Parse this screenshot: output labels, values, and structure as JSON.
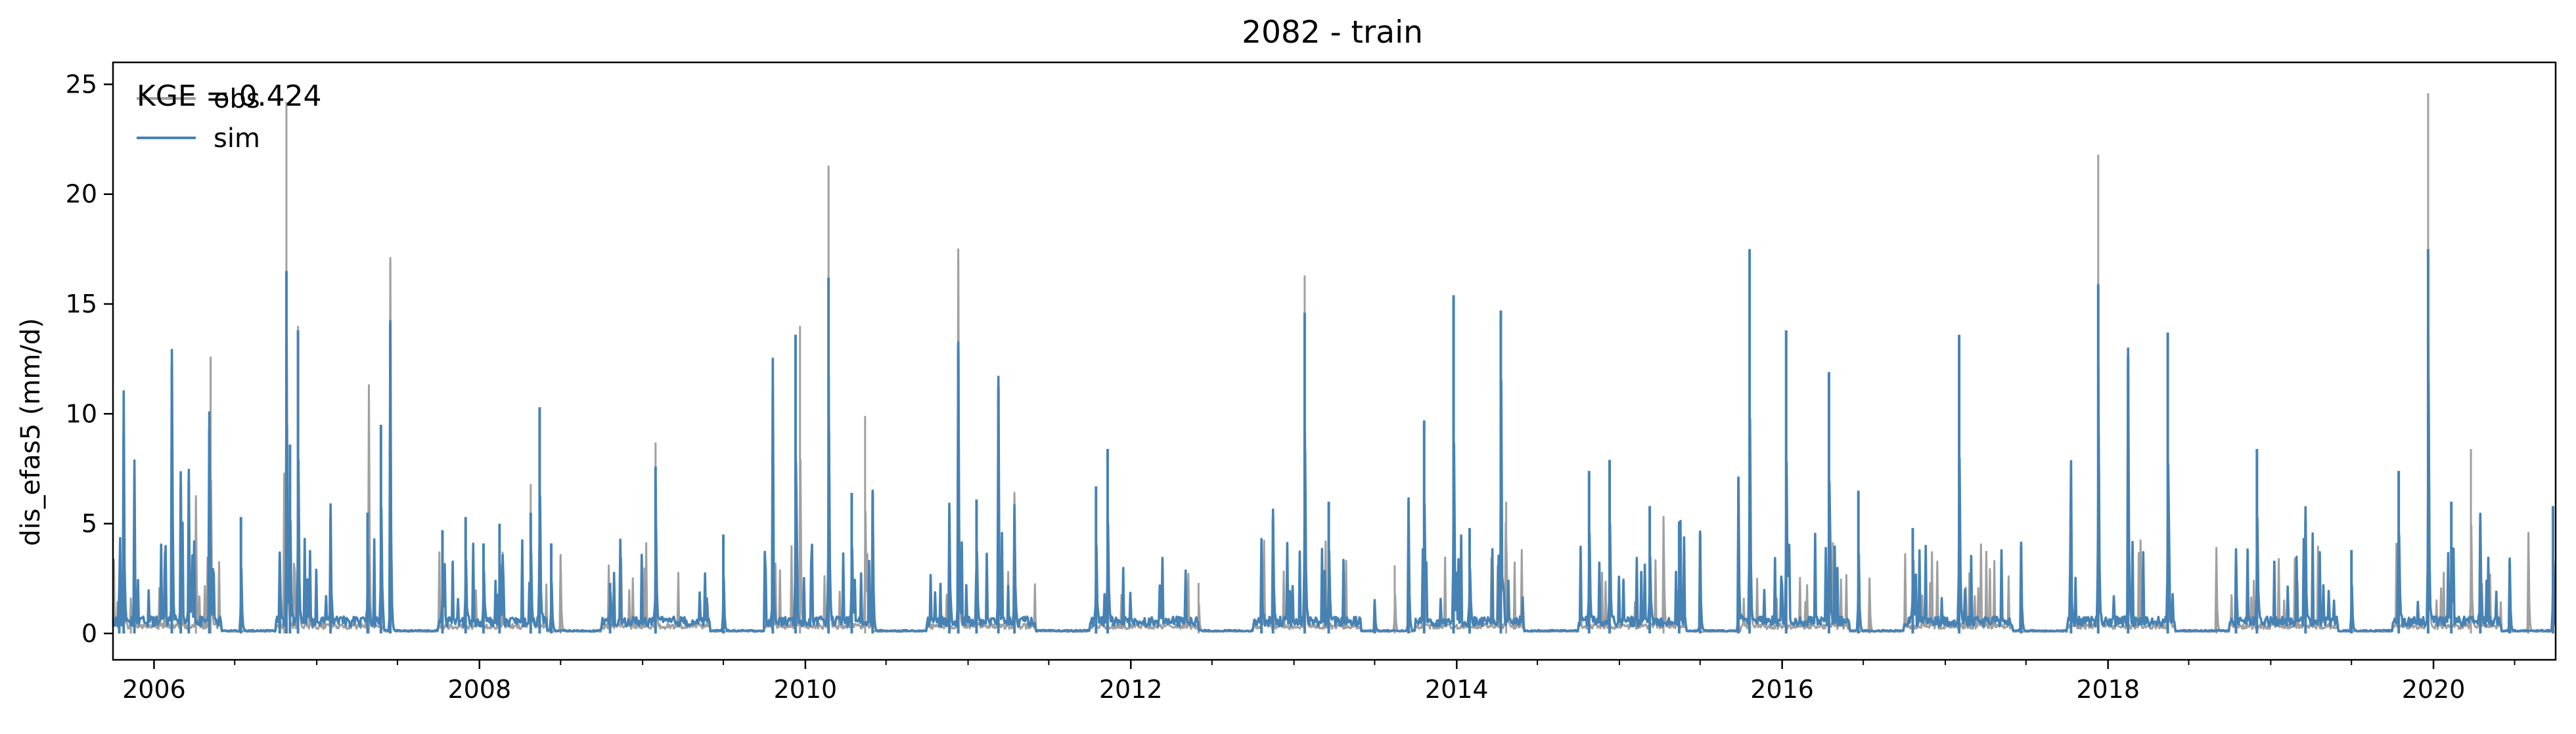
{
  "chart_data": {
    "type": "line",
    "title": "2082 - train",
    "xlabel": "",
    "ylabel": "dis_efas5 (mm/d)",
    "annotation": "KGE = 0.424",
    "xlim": [
      "2005-10-01",
      "2020-10-01"
    ],
    "ylim": [
      -1.2,
      26
    ],
    "x_ticks": [
      "2006",
      "2008",
      "2010",
      "2012",
      "2014",
      "2016",
      "2018",
      "2020"
    ],
    "y_ticks": [
      0,
      5,
      10,
      15,
      20,
      25
    ],
    "legend": {
      "placement": "top-left",
      "entries": [
        "obs",
        "sim"
      ]
    },
    "grid": false,
    "series": [
      {
        "name": "obs",
        "color": "#a0a0a0",
        "peaks": [
          [
            "2005-10-25",
            3.0
          ],
          [
            "2005-11-10",
            1.2
          ],
          [
            "2006-04-05",
            6.0
          ],
          [
            "2006-05-08",
            12.6
          ],
          [
            "2006-10-20",
            7.0
          ],
          [
            "2006-10-25",
            24.2
          ],
          [
            "2006-11-20",
            14.0
          ],
          [
            "2007-04-28",
            11.0
          ],
          [
            "2007-06-15",
            17.0
          ],
          [
            "2008-04-25",
            6.8
          ],
          [
            "2008-07-01",
            3.5
          ],
          [
            "2009-01-30",
            8.7
          ],
          [
            "2009-12-20",
            14.0
          ],
          [
            "2010-02-22",
            21.3
          ],
          [
            "2010-05-15",
            9.9
          ],
          [
            "2010-12-10",
            17.1
          ],
          [
            "2011-04-15",
            6.2
          ],
          [
            "2012-06-01",
            2.3
          ],
          [
            "2013-01-25",
            16.3
          ],
          [
            "2013-08-15",
            3.1
          ],
          [
            "2014-04-22",
            6.0
          ],
          [
            "2015-04-10",
            5.0
          ],
          [
            "2015-10-20",
            8.5
          ],
          [
            "2016-07-15",
            2.4
          ],
          [
            "2017-12-10",
            21.8
          ],
          [
            "2018-05-15",
            8.0
          ],
          [
            "2018-09-01",
            3.8
          ],
          [
            "2019-12-20",
            24.6
          ],
          [
            "2020-03-25",
            8.4
          ],
          [
            "2020-08-01",
            4.5
          ],
          [
            "2020-09-25",
            5.8
          ]
        ]
      },
      {
        "name": "sim",
        "color": "#4682b4",
        "peaks": [
          [
            "2005-10-15",
            1.3
          ],
          [
            "2005-10-25",
            9.1
          ],
          [
            "2005-11-18",
            6.1
          ],
          [
            "2006-02-10",
            12.2
          ],
          [
            "2006-03-02",
            6.7
          ],
          [
            "2006-03-20",
            6.9
          ],
          [
            "2006-05-05",
            9.3
          ],
          [
            "2006-07-15",
            5.3
          ],
          [
            "2006-10-10",
            3.3
          ],
          [
            "2006-10-25",
            16.5
          ],
          [
            "2006-11-02",
            8.6
          ],
          [
            "2006-11-20",
            13.8
          ],
          [
            "2007-02-01",
            5.3
          ],
          [
            "2007-04-25",
            5.5
          ],
          [
            "2007-05-25",
            9.5
          ],
          [
            "2007-06-15",
            14.1
          ],
          [
            "2007-10-10",
            4.7
          ],
          [
            "2007-12-01",
            5.3
          ],
          [
            "2008-01-10",
            4.1
          ],
          [
            "2008-02-15",
            5.0
          ],
          [
            "2008-04-25",
            5.5
          ],
          [
            "2008-05-15",
            10.3
          ],
          [
            "2008-06-10",
            4.1
          ],
          [
            "2008-10-20",
            2.3
          ],
          [
            "2009-01-30",
            7.6
          ],
          [
            "2009-07-01",
            4.5
          ],
          [
            "2009-10-20",
            8.0
          ],
          [
            "2009-12-10",
            13.6
          ],
          [
            "2010-02-22",
            16.2
          ],
          [
            "2010-04-15",
            6.4
          ],
          [
            "2010-06-01",
            6.4
          ],
          [
            "2010-11-20",
            5.3
          ],
          [
            "2010-12-10",
            12.8
          ],
          [
            "2011-01-20",
            6.1
          ],
          [
            "2011-03-10",
            11.2
          ],
          [
            "2011-04-15",
            5.3
          ],
          [
            "2011-10-15",
            6.7
          ],
          [
            "2011-11-10",
            8.4
          ],
          [
            "2012-10-20",
            3.6
          ],
          [
            "2012-11-15",
            5.3
          ],
          [
            "2013-01-25",
            14.6
          ],
          [
            "2013-03-20",
            6.0
          ],
          [
            "2013-07-01",
            1.4
          ],
          [
            "2013-09-15",
            6.0
          ],
          [
            "2013-10-20",
            9.7
          ],
          [
            "2013-12-25",
            15.4
          ],
          [
            "2014-01-30",
            4.8
          ],
          [
            "2014-04-10",
            14.7
          ],
          [
            "2014-10-25",
            7.4
          ],
          [
            "2014-12-10",
            7.9
          ],
          [
            "2015-03-10",
            5.8
          ],
          [
            "2015-05-15",
            5.1
          ],
          [
            "2015-07-01",
            4.5
          ],
          [
            "2015-09-25",
            7.0
          ],
          [
            "2015-10-20",
            17.5
          ],
          [
            "2016-01-10",
            13.8
          ],
          [
            "2016-04-15",
            11.9
          ],
          [
            "2016-06-20",
            6.5
          ],
          [
            "2016-10-20",
            4.8
          ],
          [
            "2017-02-01",
            13.6
          ],
          [
            "2017-06-20",
            4.0
          ],
          [
            "2017-10-10",
            3.7
          ],
          [
            "2017-12-10",
            15.9
          ],
          [
            "2018-02-15",
            12.6
          ],
          [
            "2018-05-15",
            13.7
          ],
          [
            "2018-10-15",
            3.3
          ],
          [
            "2018-12-01",
            8.4
          ],
          [
            "2019-03-20",
            5.1
          ],
          [
            "2019-07-01",
            3.8
          ],
          [
            "2019-10-15",
            7.4
          ],
          [
            "2019-12-20",
            17.5
          ],
          [
            "2020-02-10",
            6.0
          ],
          [
            "2020-04-15",
            5.0
          ],
          [
            "2020-06-20",
            3.3
          ],
          [
            "2020-09-25",
            5.8
          ]
        ]
      }
    ]
  }
}
